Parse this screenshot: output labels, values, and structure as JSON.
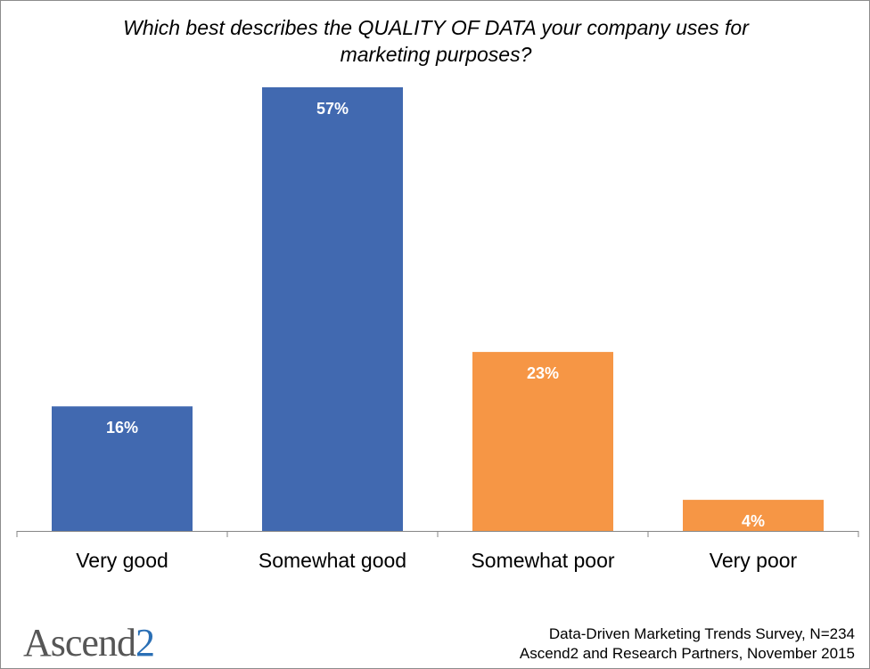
{
  "chart_data": {
    "type": "bar",
    "title": "Which best describes the QUALITY OF DATA your company uses for marketing purposes?",
    "title_lines": [
      "Which best describes the QUALITY OF DATA your company uses for",
      "marketing purposes?"
    ],
    "categories": [
      "Very good",
      "Somewhat good",
      "Somewhat poor",
      "Very poor"
    ],
    "values": [
      16,
      57,
      23,
      4
    ],
    "value_labels": [
      "16%",
      "57%",
      "23%",
      "4%"
    ],
    "colors": [
      "#4169b0",
      "#4169b0",
      "#f69645",
      "#f69645"
    ],
    "xlabel": "",
    "ylabel": "",
    "ylim": [
      0,
      57
    ],
    "grid": false,
    "legend": "none"
  },
  "logo": {
    "word": "Ascend",
    "number": "2"
  },
  "source": {
    "line1": "Data-Driven Marketing Trends Survey, N=234",
    "line2": "Ascend2 and Research Partners, November 2015"
  }
}
